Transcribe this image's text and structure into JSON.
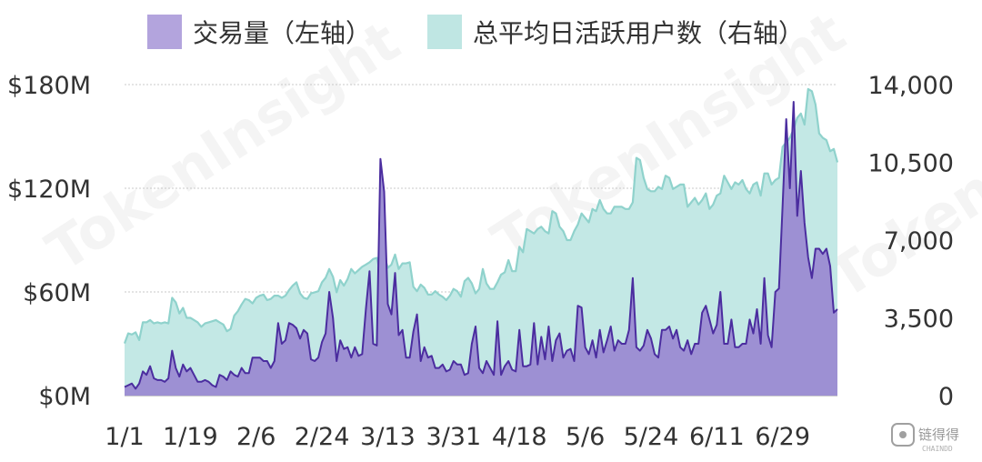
{
  "chart_data": {
    "type": "area",
    "watermark": "TokenInsight",
    "corner_logo": {
      "text": "链得得",
      "subtext": "CHAINDD"
    },
    "legend": [
      {
        "label": "交易量（左轴）",
        "color": "#b3a4dd"
      },
      {
        "label": "总平均日活跃用户数（右轴）",
        "color": "#bfe6e3"
      }
    ],
    "x_tick_labels": [
      "1/1",
      "1/19",
      "2/6",
      "2/24",
      "3/13",
      "3/31",
      "4/18",
      "5/6",
      "5/24",
      "6/11",
      "6/29"
    ],
    "x_tick_index": [
      0,
      18,
      36,
      54,
      72,
      90,
      108,
      126,
      144,
      162,
      180
    ],
    "y_left": {
      "min": 0,
      "max": 180,
      "ticks": [
        0,
        60,
        120,
        180
      ],
      "tick_labels": [
        "$0M",
        "$60M",
        "$120M",
        "$180M"
      ],
      "unit": "$M"
    },
    "y_right": {
      "min": 0,
      "max": 14000,
      "ticks": [
        0,
        3500,
        7000,
        10500,
        14000
      ],
      "tick_labels": [
        "0",
        "3,500",
        "7,000",
        "10,500",
        "14,000"
      ]
    },
    "grid": true,
    "series": [
      {
        "name": "交易量（左轴）",
        "axis": "left",
        "fill": "#9d90d3",
        "line": "#4b2d9f",
        "values": [
          5,
          6,
          7,
          4,
          7,
          14,
          12,
          17,
          10,
          9,
          9,
          8,
          10,
          26,
          16,
          11,
          18,
          14,
          16,
          12,
          8,
          8,
          9,
          8,
          6,
          5,
          12,
          11,
          9,
          14,
          12,
          11,
          16,
          13,
          13,
          22,
          22,
          22,
          20,
          20,
          16,
          20,
          42,
          30,
          32,
          42,
          41,
          39,
          33,
          38,
          36,
          21,
          20,
          22,
          31,
          36,
          60,
          45,
          20,
          32,
          27,
          28,
          22,
          28,
          23,
          24,
          50,
          72,
          30,
          29,
          137,
          118,
          53,
          47,
          71,
          35,
          38,
          22,
          22,
          37,
          47,
          20,
          28,
          22,
          23,
          16,
          16,
          18,
          14,
          15,
          20,
          18,
          18,
          12,
          13,
          30,
          40,
          16,
          13,
          20,
          16,
          12,
          43,
          12,
          17,
          20,
          15,
          14,
          38,
          17,
          17,
          18,
          42,
          18,
          34,
          21,
          40,
          20,
          32,
          36,
          22,
          26,
          27,
          20,
          52,
          51,
          28,
          24,
          32,
          22,
          38,
          25,
          32,
          40,
          26,
          32,
          30,
          30,
          38,
          68,
          28,
          26,
          29,
          38,
          33,
          24,
          22,
          38,
          38,
          40,
          33,
          38,
          28,
          26,
          32,
          24,
          30,
          30,
          48,
          52,
          44,
          36,
          41,
          60,
          30,
          30,
          44,
          28,
          28,
          30,
          30,
          44,
          36,
          50,
          30,
          68,
          35,
          28,
          60,
          62,
          110,
          160,
          120,
          170,
          104,
          130,
          100,
          80,
          68,
          85,
          85,
          82,
          85,
          75,
          48,
          50
        ]
      },
      {
        "name": "总平均日活跃用户数（右轴）",
        "axis": "right",
        "fill": "#c3e8e5",
        "line": "#8fd2cc",
        "values": [
          2350,
          2800,
          2750,
          2850,
          2500,
          3300,
          3300,
          3400,
          3250,
          3300,
          3250,
          3300,
          3250,
          4400,
          4200,
          3700,
          3950,
          3500,
          3500,
          3400,
          3300,
          3100,
          3250,
          3300,
          3350,
          3400,
          3300,
          3200,
          2900,
          3000,
          3600,
          3800,
          4100,
          4350,
          4300,
          4150,
          4400,
          4500,
          4550,
          4300,
          4350,
          4500,
          4500,
          4400,
          4500,
          4750,
          4950,
          5100,
          4600,
          4400,
          4350,
          4600,
          4650,
          4700,
          5100,
          5300,
          5700,
          5350,
          4650,
          5200,
          4950,
          5250,
          5700,
          5500,
          5650,
          5800,
          5900,
          6000,
          6150,
          6200,
          5500,
          6300,
          5750,
          5900,
          6350,
          5700,
          5950,
          5950,
          6000,
          4900,
          4700,
          5000,
          4850,
          4550,
          4550,
          4700,
          4550,
          4450,
          4300,
          4500,
          4800,
          4700,
          4450,
          5150,
          5300,
          5050,
          4600,
          4800,
          5700,
          5050,
          4800,
          4800,
          5100,
          5450,
          5550,
          6100,
          5600,
          5600,
          6700,
          6450,
          7500,
          7400,
          7300,
          7500,
          7600,
          7400,
          7300,
          8300,
          8200,
          7600,
          7400,
          7000,
          7000,
          7400,
          7700,
          8200,
          8000,
          7800,
          8400,
          8300,
          8800,
          8400,
          8200,
          8200,
          8500,
          8500,
          8500,
          8400,
          8400,
          8700,
          10700,
          10600,
          9800,
          9300,
          9200,
          9200,
          9400,
          9300,
          9900,
          9800,
          9300,
          9400,
          9500,
          9500,
          8500,
          8700,
          8900,
          8600,
          8800,
          9100,
          8400,
          8600,
          9000,
          9100,
          9900,
          9600,
          9300,
          9600,
          9500,
          9700,
          9300,
          9100,
          9500,
          9600,
          9000,
          10000,
          10000,
          9500,
          9700,
          9800,
          11200,
          11400,
          11600,
          12000,
          12500,
          12700,
          12200,
          13800,
          13700,
          13100,
          11800,
          11600,
          11500,
          11000,
          11100,
          10500
        ]
      }
    ]
  }
}
